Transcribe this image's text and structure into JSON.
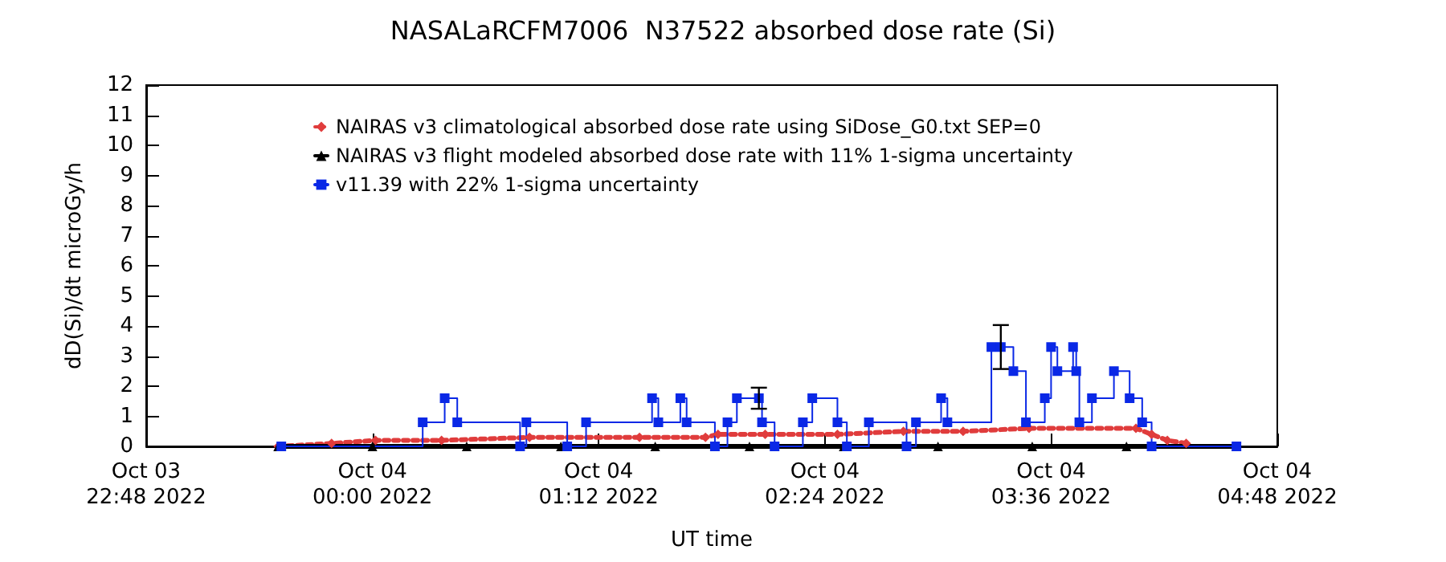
{
  "chart_data": {
    "type": "line",
    "title": "NASALaRCFM7006  N37522 absorbed dose rate (Si)",
    "xlabel": "UT time",
    "ylabel": "dD(Si)/dt microGy/h",
    "xlim": [
      "2022-10-03T22:48",
      "2022-10-04T04:48"
    ],
    "xticks": [
      {
        "value": "2022-10-03T22:48",
        "label": "Oct 03\n22:48 2022"
      },
      {
        "value": "2022-10-04T00:00",
        "label": "Oct 04\n00:00 2022"
      },
      {
        "value": "2022-10-04T01:12",
        "label": "Oct 04\n01:12 2022"
      },
      {
        "value": "2022-10-04T02:24",
        "label": "Oct 04\n02:24 2022"
      },
      {
        "value": "2022-10-04T03:36",
        "label": "Oct 04\n03:36 2022"
      },
      {
        "value": "2022-10-04T04:48",
        "label": "Oct 04\n04:48 2022"
      }
    ],
    "ylim": [
      0,
      12
    ],
    "yticks": [
      0,
      1,
      2,
      3,
      4,
      5,
      6,
      7,
      8,
      9,
      10,
      11,
      12
    ],
    "grid": false,
    "legend": "top left",
    "series": [
      {
        "name": "NAIRAS v3 climatological absorbed dose rate using SiDose_G0.txt SEP=0",
        "color": "#e03c3c",
        "marker": "diamond",
        "line_style": "dotted",
        "x": [
          "2022-10-03T23:30",
          "2022-10-03T23:47",
          "2022-10-04T00:01",
          "2022-10-04T00:22",
          "2022-10-04T00:50",
          "2022-10-04T01:25",
          "2022-10-04T01:46",
          "2022-10-04T01:50",
          "2022-10-04T02:05",
          "2022-10-04T02:28",
          "2022-10-04T02:49",
          "2022-10-04T03:08",
          "2022-10-04T03:29",
          "2022-10-04T04:03",
          "2022-10-04T04:08",
          "2022-10-04T04:13",
          "2022-10-04T04:19"
        ],
        "values": [
          0,
          0.1,
          0.2,
          0.2,
          0.3,
          0.3,
          0.3,
          0.4,
          0.4,
          0.4,
          0.5,
          0.5,
          0.6,
          0.6,
          0.4,
          0.2,
          0.1
        ]
      },
      {
        "name": "NAIRAS v3 flight modeled absorbed dose rate with 11% 1-sigma uncertainty",
        "color": "#000000",
        "marker": "triangle",
        "line_style": "solid",
        "x": [
          "2022-10-03T23:30",
          "2022-10-04T00:00",
          "2022-10-04T00:30",
          "2022-10-04T01:00",
          "2022-10-04T01:30",
          "2022-10-04T02:00",
          "2022-10-04T02:30",
          "2022-10-04T03:00",
          "2022-10-04T03:30",
          "2022-10-04T04:00",
          "2022-10-04T04:35"
        ],
        "values": [
          0,
          0,
          0,
          0,
          0,
          0,
          0,
          0,
          0,
          0,
          0
        ]
      },
      {
        "name": "v11.39 with 22% 1-sigma uncertainty",
        "color": "#0a28e6",
        "type": "step",
        "marker": "square",
        "line_style": "solid",
        "x": [
          "2022-10-03T23:31",
          "2022-10-04T00:16",
          "2022-10-04T00:23",
          "2022-10-04T00:27",
          "2022-10-04T00:47",
          "2022-10-04T00:49",
          "2022-10-04T01:02",
          "2022-10-04T01:08",
          "2022-10-04T01:29",
          "2022-10-04T01:31",
          "2022-10-04T01:38",
          "2022-10-04T01:40",
          "2022-10-04T01:49",
          "2022-10-04T01:53",
          "2022-10-04T01:56",
          "2022-10-04T02:03",
          "2022-10-04T02:04",
          "2022-10-04T02:08",
          "2022-10-04T02:17",
          "2022-10-04T02:20",
          "2022-10-04T02:28",
          "2022-10-04T02:31",
          "2022-10-04T02:38",
          "2022-10-04T02:50",
          "2022-10-04T02:53",
          "2022-10-04T03:01",
          "2022-10-04T03:03",
          "2022-10-04T03:17",
          "2022-10-04T03:20",
          "2022-10-04T03:24",
          "2022-10-04T03:28",
          "2022-10-04T03:34",
          "2022-10-04T03:36",
          "2022-10-04T03:38",
          "2022-10-04T03:43",
          "2022-10-04T03:44",
          "2022-10-04T03:45",
          "2022-10-04T03:49",
          "2022-10-04T03:56",
          "2022-10-04T04:01",
          "2022-10-04T04:05",
          "2022-10-04T04:08",
          "2022-10-04T04:35"
        ],
        "values": [
          0,
          0.8,
          1.6,
          0.8,
          0,
          0.8,
          0,
          0.8,
          1.6,
          0.8,
          1.6,
          0.8,
          0,
          0.8,
          1.6,
          1.6,
          0.8,
          0,
          0.8,
          1.6,
          0.8,
          0,
          0.8,
          0,
          0.8,
          1.6,
          0.8,
          3.3,
          3.3,
          2.5,
          0.8,
          1.6,
          3.3,
          2.5,
          3.3,
          2.5,
          0.8,
          1.6,
          2.5,
          1.6,
          0.8,
          0,
          0
        ],
        "errors": [
          null,
          null,
          null,
          null,
          null,
          null,
          null,
          null,
          null,
          null,
          null,
          null,
          null,
          null,
          null,
          0.35,
          null,
          null,
          null,
          null,
          null,
          null,
          null,
          null,
          null,
          null,
          null,
          null,
          0.73,
          null,
          null,
          null,
          null,
          null,
          null,
          null,
          null,
          null,
          null,
          null,
          null,
          null,
          null
        ]
      }
    ]
  }
}
